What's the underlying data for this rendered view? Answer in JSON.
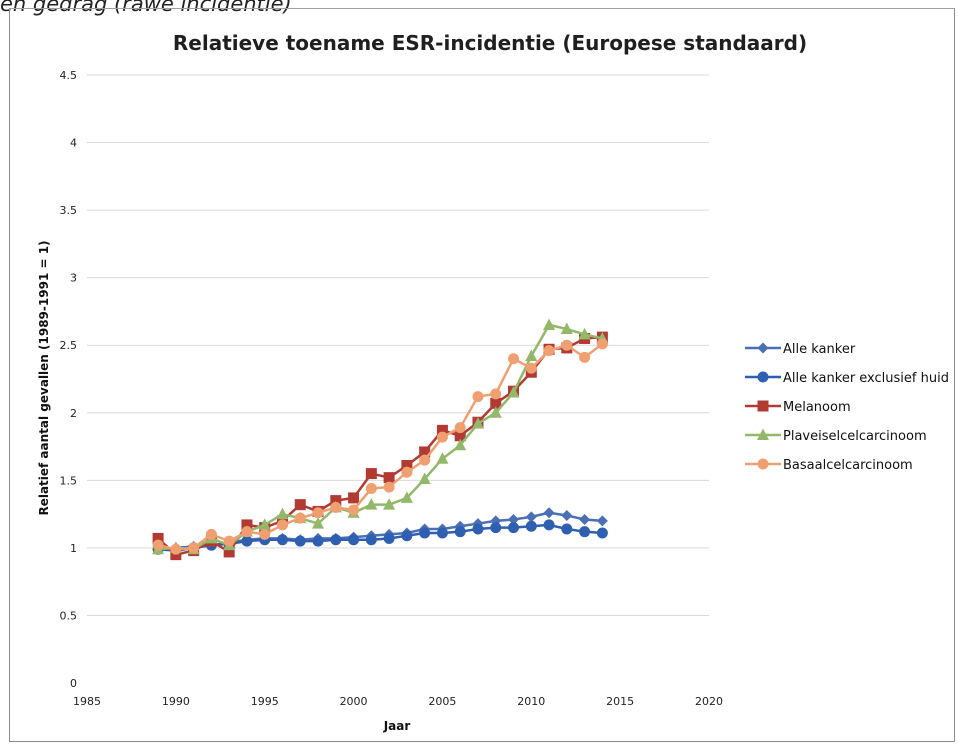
{
  "caption": "en gedrag (rawe incidentie)",
  "chart_data": {
    "type": "line",
    "title": "Relatieve toename ESR-incidentie (Europese standaard)",
    "xlabel": "Jaar",
    "ylabel": "Relatief aantal gevallen (1989-1991 = 1)",
    "xlim": [
      1985,
      2020
    ],
    "ylim": [
      0,
      4.5
    ],
    "xticks": [
      1985,
      1990,
      1995,
      2000,
      2005,
      2010,
      2015,
      2020
    ],
    "yticks": [
      0,
      0.5,
      1,
      1.5,
      2,
      2.5,
      3,
      3.5,
      4,
      4.5
    ],
    "ytick_labels": [
      "0",
      "0.5",
      "1",
      "1.5",
      "2",
      "2.5",
      "3",
      "3.5",
      "4",
      "4.5"
    ],
    "grid": true,
    "legend_position": "right",
    "x": [
      1989,
      1990,
      1991,
      1992,
      1993,
      1994,
      1995,
      1996,
      1997,
      1998,
      1999,
      2000,
      2001,
      2002,
      2003,
      2004,
      2005,
      2006,
      2007,
      2008,
      2009,
      2010,
      2011,
      2012,
      2013,
      2014
    ],
    "series": [
      {
        "name": "Alle kanker",
        "color": "#4a6fb5",
        "marker": "diamond",
        "values": [
          0.99,
          1.0,
          1.01,
          1.02,
          1.04,
          1.06,
          1.07,
          1.07,
          1.06,
          1.07,
          1.07,
          1.08,
          1.09,
          1.1,
          1.11,
          1.14,
          1.14,
          1.16,
          1.18,
          1.2,
          1.21,
          1.23,
          1.26,
          1.24,
          1.21,
          1.2
        ]
      },
      {
        "name": "Alle kanker exclusief huid",
        "color": "#2e5fb0",
        "marker": "circle",
        "values": [
          0.99,
          0.98,
          1.0,
          1.02,
          1.03,
          1.05,
          1.06,
          1.06,
          1.05,
          1.05,
          1.06,
          1.06,
          1.06,
          1.07,
          1.09,
          1.11,
          1.11,
          1.12,
          1.14,
          1.15,
          1.15,
          1.16,
          1.17,
          1.14,
          1.12,
          1.11
        ]
      },
      {
        "name": "Melanoom",
        "color": "#b23a33",
        "marker": "square",
        "values": [
          1.07,
          0.95,
          0.98,
          1.05,
          0.97,
          1.17,
          1.15,
          1.2,
          1.32,
          1.27,
          1.35,
          1.37,
          1.55,
          1.52,
          1.61,
          1.71,
          1.87,
          1.83,
          1.93,
          2.07,
          2.16,
          2.3,
          2.47,
          2.48,
          2.55,
          2.56
        ]
      },
      {
        "name": "Plaveiselcelcarcinoom",
        "color": "#93b86a",
        "marker": "triangle",
        "values": [
          0.99,
          1.0,
          0.99,
          1.07,
          1.02,
          1.12,
          1.17,
          1.25,
          1.22,
          1.18,
          1.3,
          1.26,
          1.32,
          1.32,
          1.37,
          1.51,
          1.66,
          1.76,
          1.92,
          2.0,
          2.15,
          2.42,
          2.65,
          2.62,
          2.58,
          2.55
        ]
      },
      {
        "name": "Basaalcelcarcinoom",
        "color": "#f0a070",
        "marker": "circle",
        "values": [
          1.02,
          0.99,
          1.0,
          1.1,
          1.05,
          1.12,
          1.1,
          1.17,
          1.22,
          1.26,
          1.3,
          1.28,
          1.44,
          1.45,
          1.56,
          1.65,
          1.82,
          1.89,
          2.12,
          2.14,
          2.4,
          2.33,
          2.46,
          2.5,
          2.41,
          2.51
        ]
      }
    ]
  }
}
